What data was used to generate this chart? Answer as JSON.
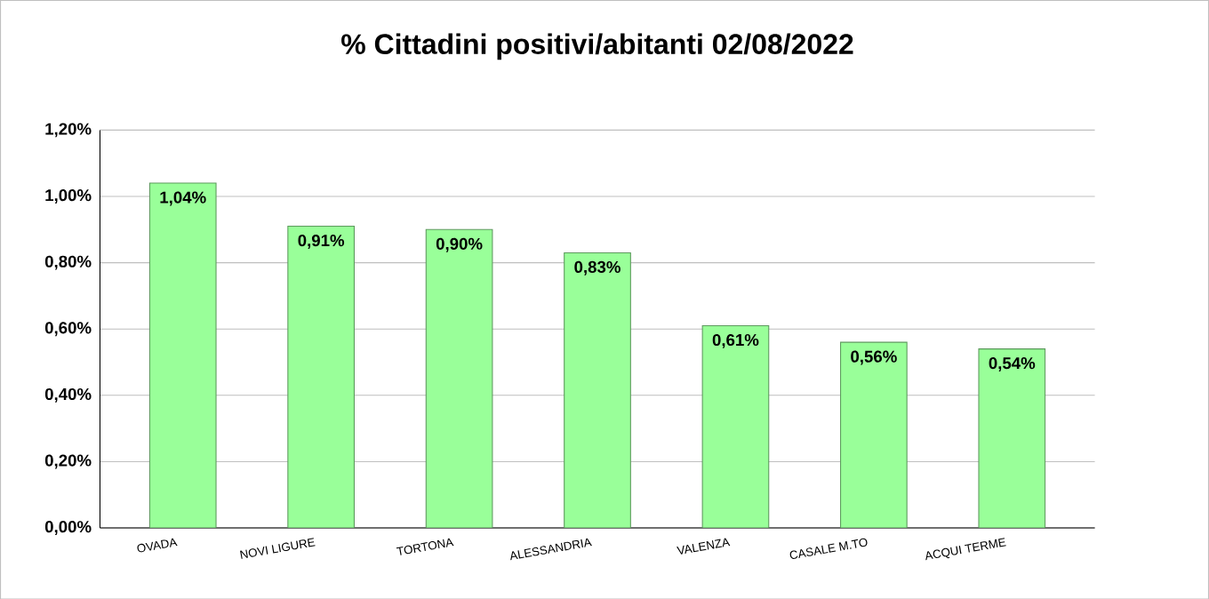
{
  "chart_data": {
    "type": "bar",
    "title": "% Cittadini positivi/abitanti 02/08/2022",
    "categories": [
      "OVADA",
      "NOVI LIGURE",
      "TORTONA",
      "ALESSANDRIA",
      "VALENZA",
      "CASALE M.TO",
      "ACQUI TERME"
    ],
    "values": [
      1.04,
      0.91,
      0.9,
      0.83,
      0.61,
      0.56,
      0.54
    ],
    "value_labels": [
      "1,04%",
      "0,91%",
      "0,90%",
      "0,83%",
      "0,61%",
      "0,56%",
      "0,54%"
    ],
    "color": "#99ff99",
    "ylim": [
      0,
      1.2
    ],
    "yticks": [
      {
        "value": 0,
        "label": "0,00%"
      },
      {
        "value": 0.2,
        "label": "0,20%"
      },
      {
        "value": 0.4,
        "label": "0,40%"
      },
      {
        "value": 0.6,
        "label": "0,60%"
      },
      {
        "value": 0.8,
        "label": "0,80%"
      },
      {
        "value": 1.0,
        "label": "1,00%"
      },
      {
        "value": 1.2,
        "label": "1,20%"
      }
    ],
    "grid": true
  }
}
